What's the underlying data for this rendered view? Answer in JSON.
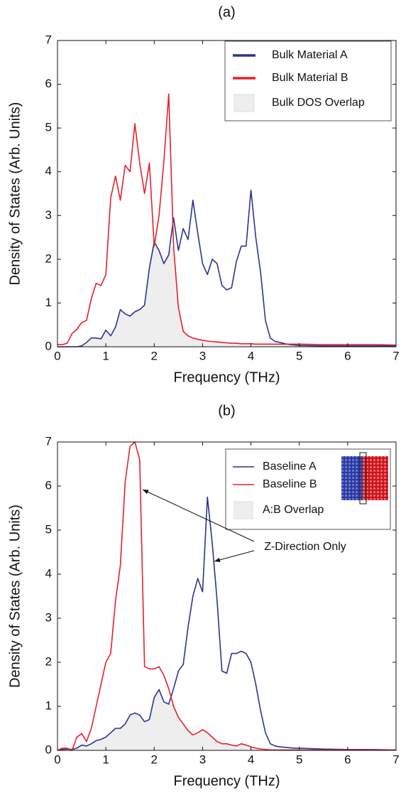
{
  "chart_data": [
    {
      "type": "line",
      "title": "(a)",
      "xlabel": "Frequency (THz)",
      "ylabel": "Density of States (Arb. Units)",
      "x": [
        0,
        0.1,
        0.2,
        0.3,
        0.4,
        0.5,
        0.6,
        0.7,
        0.8,
        0.9,
        1.0,
        1.1,
        1.2,
        1.3,
        1.4,
        1.5,
        1.6,
        1.7,
        1.8,
        1.9,
        2.0,
        2.1,
        2.2,
        2.3,
        2.4,
        2.5,
        2.6,
        2.7,
        2.8,
        2.9,
        3.0,
        3.1,
        3.2,
        3.3,
        3.4,
        3.5,
        3.6,
        3.7,
        3.8,
        3.9,
        4.0,
        4.1,
        4.2,
        4.3,
        4.4,
        4.5,
        4.6,
        4.7,
        4.8,
        4.9,
        5.0,
        5.5,
        6,
        6.5,
        7
      ],
      "series": [
        {
          "name": "Bulk Material A",
          "color": "#2b3590",
          "values": [
            0,
            0,
            0,
            0,
            0,
            0.02,
            0.1,
            0.2,
            0.2,
            0.18,
            0.38,
            0.25,
            0.45,
            0.85,
            0.75,
            0.7,
            0.8,
            0.85,
            0.95,
            1.8,
            2.4,
            2.2,
            1.9,
            2.1,
            2.95,
            2.2,
            2.7,
            2.45,
            3.35,
            2.6,
            1.9,
            1.65,
            2.0,
            1.9,
            1.4,
            1.3,
            1.35,
            1.95,
            2.3,
            2.3,
            3.58,
            2.5,
            1.7,
            0.6,
            0.2,
            0.12,
            0.1,
            0.07,
            0.05,
            0.04,
            0.03,
            0.02,
            0.02,
            0.02,
            0.02
          ]
        },
        {
          "name": "Bulk Material B",
          "color": "#e8202a",
          "values": [
            0.05,
            0.05,
            0.08,
            0.3,
            0.4,
            0.55,
            0.6,
            1.1,
            1.45,
            1.4,
            1.65,
            3.4,
            3.9,
            3.35,
            4.15,
            4.0,
            5.1,
            4.2,
            3.5,
            4.2,
            2.3,
            3.0,
            4.25,
            5.78,
            2.3,
            0.9,
            0.35,
            0.25,
            0.2,
            0.17,
            0.15,
            0.13,
            0.12,
            0.11,
            0.1,
            0.09,
            0.08,
            0.08,
            0.07,
            0.07,
            0.07,
            0.06,
            0.06,
            0.06,
            0.06,
            0.06,
            0.06,
            0.06,
            0.06,
            0.06,
            0.06,
            0.05,
            0.05,
            0.05,
            0.04
          ]
        }
      ],
      "overlap": {
        "name": "Bulk DOS Overlap",
        "color": "#eeeeee",
        "values": [
          0,
          0,
          0,
          0,
          0,
          0.02,
          0.1,
          0.2,
          0.2,
          0.18,
          0.38,
          0.25,
          0.45,
          0.85,
          0.75,
          0.7,
          0.8,
          0.85,
          0.95,
          1.8,
          2.3,
          2.2,
          1.9,
          2.1,
          2.3,
          0.9,
          0.35,
          0.25,
          0.2,
          0.17,
          0.15,
          0.13,
          0.12,
          0.11,
          0.1,
          0.09,
          0.08,
          0.08,
          0.07,
          0.07,
          0.07,
          0.06,
          0.06,
          0.06,
          0.06,
          0.06,
          0.06,
          0.06,
          0.05,
          0.04,
          0.03,
          0.02,
          0.02,
          0.02,
          0.02
        ]
      },
      "xlim": [
        0,
        7
      ],
      "ylim": [
        0,
        7
      ],
      "xticks": [
        0,
        1,
        2,
        3,
        4,
        5,
        6,
        7
      ],
      "yticks": [
        0,
        1,
        2,
        3,
        4,
        5,
        6,
        7
      ],
      "legend": "upper right"
    },
    {
      "type": "line",
      "title": "(b)",
      "xlabel": "Frequency (THz)",
      "ylabel": "Density of States (Arb. Units)",
      "x": [
        0,
        0.1,
        0.2,
        0.3,
        0.4,
        0.5,
        0.6,
        0.7,
        0.8,
        0.9,
        1.0,
        1.1,
        1.2,
        1.3,
        1.4,
        1.5,
        1.6,
        1.7,
        1.8,
        1.9,
        2.0,
        2.1,
        2.2,
        2.3,
        2.4,
        2.5,
        2.6,
        2.7,
        2.8,
        2.9,
        3.0,
        3.1,
        3.2,
        3.3,
        3.4,
        3.5,
        3.6,
        3.7,
        3.8,
        3.9,
        4.0,
        4.1,
        4.2,
        4.3,
        4.4,
        4.5,
        4.6,
        4.7,
        4.8,
        4.9,
        5.0,
        5.5,
        6,
        6.5,
        7
      ],
      "series": [
        {
          "name": "Baseline A",
          "color": "#2b3590",
          "values": [
            0,
            0.02,
            0.03,
            0.02,
            0.05,
            0.12,
            0.1,
            0.15,
            0.22,
            0.25,
            0.3,
            0.4,
            0.5,
            0.5,
            0.6,
            0.8,
            0.85,
            0.8,
            0.65,
            0.7,
            1.2,
            1.38,
            1.1,
            1.05,
            1.4,
            1.8,
            1.95,
            2.8,
            3.5,
            3.9,
            3.6,
            5.75,
            4.7,
            3.4,
            1.8,
            1.75,
            2.2,
            2.2,
            2.25,
            2.2,
            2.0,
            1.5,
            0.9,
            0.4,
            0.15,
            0.1,
            0.08,
            0.07,
            0.06,
            0.05,
            0.05,
            0.03,
            0.02,
            0.02,
            0.01
          ]
        },
        {
          "name": "Baseline B",
          "color": "#e8202a",
          "values": [
            0,
            0.05,
            0.05,
            0,
            0.3,
            0.38,
            0.2,
            0.5,
            1.0,
            1.5,
            2.0,
            2.2,
            3.4,
            4.2,
            6.1,
            6.9,
            7.0,
            6.6,
            1.9,
            1.85,
            1.85,
            1.9,
            1.7,
            1.4,
            1.0,
            0.75,
            0.6,
            0.45,
            0.35,
            0.4,
            0.47,
            0.4,
            0.3,
            0.2,
            0.15,
            0.15,
            0.12,
            0.1,
            0.15,
            0.12,
            0.08,
            0.05,
            0.03,
            0.02,
            0.01,
            0.01,
            0.01,
            0.01,
            0.01,
            0.01,
            0.01,
            0.01,
            0.01,
            0.01,
            0.01
          ]
        }
      ],
      "overlap": {
        "name": "A:B  Overlap",
        "color": "#eeeeee",
        "values": [
          0,
          0.02,
          0.03,
          0,
          0.05,
          0.12,
          0.1,
          0.15,
          0.22,
          0.25,
          0.3,
          0.4,
          0.5,
          0.5,
          0.6,
          0.8,
          0.85,
          0.8,
          0.65,
          0.7,
          1.2,
          1.38,
          1.1,
          1.05,
          1.0,
          0.75,
          0.6,
          0.45,
          0.35,
          0.4,
          0.47,
          0.4,
          0.3,
          0.2,
          0.15,
          0.15,
          0.12,
          0.1,
          0.15,
          0.12,
          0.08,
          0.05,
          0.03,
          0.02,
          0.01,
          0.01,
          0.01,
          0.01,
          0.01,
          0.01,
          0.01,
          0.01,
          0.01,
          0.01,
          0.01
        ]
      },
      "annotation": "Z-Direction Only",
      "xlim": [
        0,
        7
      ],
      "ylim": [
        0,
        7
      ],
      "xticks": [
        0,
        1,
        2,
        3,
        4,
        5,
        6,
        7
      ],
      "yticks": [
        0,
        1,
        2,
        3,
        4,
        5,
        6,
        7
      ],
      "legend": "upper right"
    }
  ]
}
